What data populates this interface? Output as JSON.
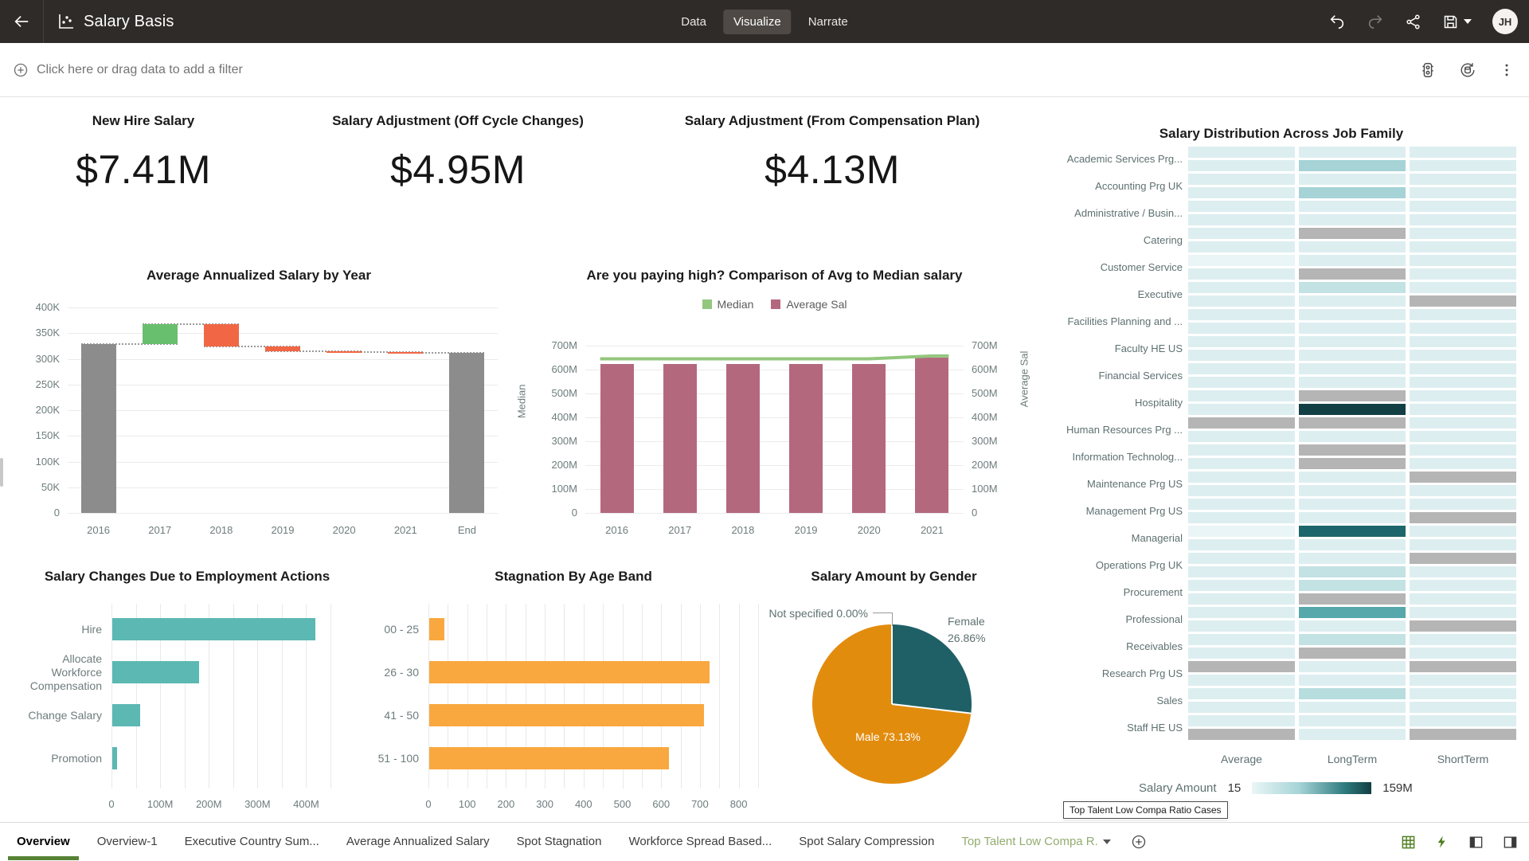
{
  "header": {
    "title": "Salary Basis",
    "tabs": [
      {
        "label": "Data",
        "active": false
      },
      {
        "label": "Visualize",
        "active": true
      },
      {
        "label": "Narrate",
        "active": false
      }
    ],
    "user_initials": "JH"
  },
  "filter_bar": {
    "placeholder": "Click here or drag data to add a filter"
  },
  "kpis": [
    {
      "title": "New Hire Salary",
      "value": "$7.41M"
    },
    {
      "title": "Salary Adjustment (Off Cycle Changes)",
      "value": "$4.95M"
    },
    {
      "title": "Salary Adjustment (From Compensation Plan)",
      "value": "$4.13M"
    }
  ],
  "chart_data": [
    {
      "type": "bar",
      "subtype": "waterfall",
      "title": "Average Annualized Salary by Year",
      "categories": [
        "2016",
        "2017",
        "2018",
        "2019",
        "2020",
        "2021",
        "End"
      ],
      "segments": [
        {
          "from": 0,
          "to": 328000,
          "kind": "total"
        },
        {
          "from": 328000,
          "to": 368000,
          "kind": "increase"
        },
        {
          "from": 368000,
          "to": 324000,
          "kind": "decrease"
        },
        {
          "from": 324000,
          "to": 315000,
          "kind": "decrease"
        },
        {
          "from": 315000,
          "to": 313000,
          "kind": "decrease"
        },
        {
          "from": 313000,
          "to": 311000,
          "kind": "decrease"
        },
        {
          "from": 0,
          "to": 311000,
          "kind": "total"
        }
      ],
      "ylim": [
        0,
        400000
      ],
      "ytick_step": 50000,
      "ytick_labels": [
        "0",
        "50K",
        "100K",
        "150K",
        "200K",
        "250K",
        "300K",
        "350K",
        "400K"
      ],
      "grid": true
    },
    {
      "type": "line",
      "subtype": "combo-bar-line",
      "title": "Are you paying high? Comparison of Avg to Median salary",
      "categories": [
        "2016",
        "2017",
        "2018",
        "2019",
        "2020",
        "2021"
      ],
      "series": [
        {
          "name": "Median",
          "render": "line",
          "values": [
            645000000,
            645000000,
            645000000,
            645000000,
            645000000,
            657000000
          ]
        },
        {
          "name": "Average Sal",
          "render": "bar",
          "values": [
            622000000,
            622000000,
            622000000,
            622000000,
            622000000,
            650000000
          ]
        }
      ],
      "left_axis_label": "Median",
      "right_axis_label": "Average Sal",
      "ylim": [
        0,
        700000000
      ],
      "ytick_step": 100000000,
      "ytick_labels": [
        "0",
        "100M",
        "200M",
        "300M",
        "400M",
        "500M",
        "600M",
        "700M"
      ],
      "legend_position": "top"
    },
    {
      "type": "heatmap",
      "title": "Salary Distribution Across Job Family",
      "columns": [
        "Average",
        "LongTerm",
        "ShortTerm"
      ],
      "legend": {
        "label": "Salary Amount",
        "min": "15",
        "max": "159M"
      },
      "palette": {
        "P": "#ddeef0",
        "W": "#e9f5f6",
        "L": "#c3e2e4",
        "N": "#b7dddf",
        "M": "#a5d3d6",
        "S": "#56a8ab",
        "D": "#1d666b",
        "K": "#123f44",
        "G": "#b5b5b5"
      },
      "rows": [
        {
          "label": "Academic Services Prg...",
          "cells": [
            [
              "P",
              "P",
              "P"
            ],
            [
              "P",
              "M",
              "P"
            ]
          ]
        },
        {
          "label": "Accounting Prg UK",
          "cells": [
            [
              "P",
              "P",
              "P"
            ],
            [
              "P",
              "M",
              "P"
            ]
          ]
        },
        {
          "label": "Administrative / Busin...",
          "cells": [
            [
              "P",
              "P",
              "P"
            ],
            [
              "P",
              "P",
              "P"
            ]
          ]
        },
        {
          "label": "Catering",
          "cells": [
            [
              "P",
              "G",
              "P"
            ],
            [
              "P",
              "P",
              "P"
            ]
          ]
        },
        {
          "label": "Customer Service",
          "cells": [
            [
              "W",
              "P",
              "P"
            ],
            [
              "P",
              "G",
              "P"
            ]
          ]
        },
        {
          "label": "Executive",
          "cells": [
            [
              "P",
              "L",
              "P"
            ],
            [
              "P",
              "P",
              "G"
            ]
          ]
        },
        {
          "label": "Facilities Planning and ...",
          "cells": [
            [
              "P",
              "P",
              "P"
            ],
            [
              "P",
              "P",
              "P"
            ]
          ]
        },
        {
          "label": "Faculty HE US",
          "cells": [
            [
              "P",
              "P",
              "P"
            ],
            [
              "P",
              "P",
              "P"
            ]
          ]
        },
        {
          "label": "Financial Services",
          "cells": [
            [
              "P",
              "P",
              "P"
            ],
            [
              "P",
              "P",
              "P"
            ]
          ]
        },
        {
          "label": "Hospitality",
          "cells": [
            [
              "P",
              "G",
              "P"
            ],
            [
              "P",
              "K",
              "P"
            ]
          ]
        },
        {
          "label": "Human Resources Prg ...",
          "cells": [
            [
              "G",
              "G",
              "P"
            ],
            [
              "P",
              "P",
              "P"
            ]
          ]
        },
        {
          "label": "Information Technolog...",
          "cells": [
            [
              "P",
              "G",
              "P"
            ],
            [
              "P",
              "G",
              "P"
            ]
          ]
        },
        {
          "label": "Maintenance Prg US",
          "cells": [
            [
              "P",
              "P",
              "G"
            ],
            [
              "P",
              "P",
              "P"
            ]
          ]
        },
        {
          "label": "Management Prg US",
          "cells": [
            [
              "P",
              "P",
              "P"
            ],
            [
              "P",
              "P",
              "G"
            ]
          ]
        },
        {
          "label": "Managerial",
          "cells": [
            [
              "W",
              "D",
              "P"
            ],
            [
              "P",
              "P",
              "P"
            ]
          ]
        },
        {
          "label": "Operations Prg UK",
          "cells": [
            [
              "P",
              "P",
              "G"
            ],
            [
              "P",
              "L",
              "P"
            ]
          ]
        },
        {
          "label": "Procurement",
          "cells": [
            [
              "P",
              "L",
              "P"
            ],
            [
              "P",
              "G",
              "P"
            ]
          ]
        },
        {
          "label": "Professional",
          "cells": [
            [
              "P",
              "S",
              "P"
            ],
            [
              "P",
              "P",
              "G"
            ]
          ]
        },
        {
          "label": "Receivables",
          "cells": [
            [
              "P",
              "L",
              "P"
            ],
            [
              "P",
              "G",
              "P"
            ]
          ]
        },
        {
          "label": "Research Prg US",
          "cells": [
            [
              "G",
              "P",
              "G"
            ],
            [
              "P",
              "P",
              "P"
            ]
          ]
        },
        {
          "label": "Sales",
          "cells": [
            [
              "P",
              "N",
              "P"
            ],
            [
              "P",
              "P",
              "P"
            ]
          ]
        },
        {
          "label": "Staff HE US",
          "cells": [
            [
              "P",
              "P",
              "P"
            ],
            [
              "G",
              "P",
              "G"
            ]
          ]
        }
      ]
    },
    {
      "type": "bar",
      "orientation": "horizontal",
      "title": "Salary Changes Due to Employment Actions",
      "categories": [
        "Hire",
        "Allocate\nWorkforce\nCompensation",
        "Change Salary",
        "Promotion"
      ],
      "values": [
        417000000,
        178000000,
        58000000,
        9000000
      ],
      "xlim": [
        0,
        450000000
      ],
      "xtick_step": 100000000,
      "xtick_labels": [
        "0",
        "100M",
        "200M",
        "300M",
        "400M"
      ],
      "grid_step": 50000000
    },
    {
      "type": "bar",
      "orientation": "horizontal",
      "title": "Stagnation By Age Band",
      "categories": [
        "00 - 25",
        "26 - 30",
        "41 - 50",
        "51 - 100"
      ],
      "values": [
        40,
        722,
        709,
        619
      ],
      "xlim": [
        0,
        850
      ],
      "xtick_step": 100,
      "xtick_labels": [
        "0",
        "100",
        "200",
        "300",
        "400",
        "500",
        "600",
        "700",
        "800"
      ],
      "grid_step": 50
    },
    {
      "type": "pie",
      "title": "Salary Amount by Gender",
      "slices": [
        {
          "label": "Female",
          "pct_label": "26.86%",
          "value": 26.86
        },
        {
          "label": "Male",
          "pct_label": "73.13%",
          "value": 73.13
        },
        {
          "label": "Not specified",
          "pct_label": "0.00%",
          "value": 0.0
        }
      ]
    }
  ],
  "footer": {
    "tabs": [
      {
        "label": "Overview",
        "active": true
      },
      {
        "label": "Overview-1"
      },
      {
        "label": "Executive Country Sum..."
      },
      {
        "label": "Average Annualized Salary"
      },
      {
        "label": "Spot Stagnation"
      },
      {
        "label": "Workforce Spread Based..."
      },
      {
        "label": "Spot Salary Compression"
      },
      {
        "label": "Top Talent Low Compa R.",
        "green": true,
        "caret": true
      }
    ],
    "tooltip": "Top Talent Low Compa Ratio Cases"
  },
  "colors": {
    "waterfall_total": "#8c8c8c",
    "waterfall_increase": "#68bf6e",
    "waterfall_decrease": "#f16745",
    "combo_bar": "#b4687e",
    "combo_line": "#93c77d",
    "teal_bar": "#5cb8b2",
    "orange_bar": "#f9a83f",
    "pie_orange": "#e28c0e",
    "pie_teal": "#1f6066",
    "footer_active_green": "#568235"
  }
}
